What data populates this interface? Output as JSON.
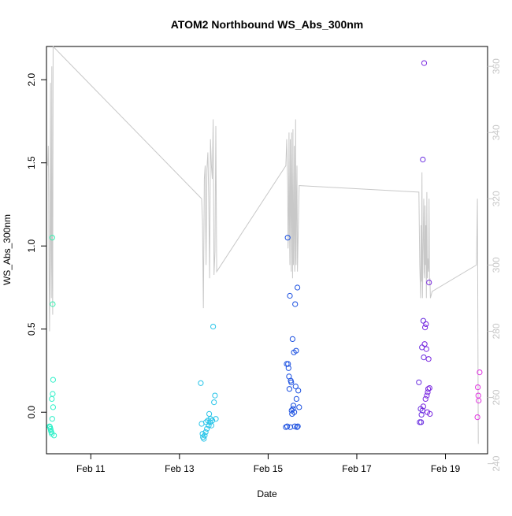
{
  "chart_data": {
    "type": "scatter",
    "title": "ATOM2 Northbound WS_Abs_300nm",
    "xlabel": "Date",
    "ylabel": "WS_Abs_300nm",
    "xlim": [
      10.0,
      19.95
    ],
    "ylim": [
      -0.25,
      2.2
    ],
    "y2lim": [
      243,
      366
    ],
    "x_ticks": [
      {
        "value": 11,
        "label": "Feb 11"
      },
      {
        "value": 13,
        "label": "Feb 13"
      },
      {
        "value": 15,
        "label": "Feb 15"
      },
      {
        "value": 17,
        "label": "Feb 17"
      },
      {
        "value": 19,
        "label": "Feb 19"
      }
    ],
    "y_ticks": [
      {
        "value": 0.0,
        "label": "0.0"
      },
      {
        "value": 0.5,
        "label": "0.5"
      },
      {
        "value": 1.0,
        "label": "1.0"
      },
      {
        "value": 1.5,
        "label": "1.5"
      },
      {
        "value": 2.0,
        "label": "2.0"
      }
    ],
    "y2_ticks": [
      {
        "value": 240,
        "label": "240"
      },
      {
        "value": 260,
        "label": "260"
      },
      {
        "value": 280,
        "label": "280"
      },
      {
        "value": 300,
        "label": "300"
      },
      {
        "value": 320,
        "label": "320"
      },
      {
        "value": 340,
        "label": "340"
      },
      {
        "value": 360,
        "label": "360"
      }
    ],
    "axis_color_secondary": "#c8c8c8",
    "grid": false,
    "series": [
      {
        "name": "WS_Abs_300nm",
        "marker": "open-circle",
        "points": [
          [
            10.07,
            -0.085,
            "#2ef0c8"
          ],
          [
            10.08,
            -0.09,
            "#2ef0c8"
          ],
          [
            10.09,
            -0.1,
            "#2ef0c8"
          ],
          [
            10.1,
            -0.11,
            "#2ef0c8"
          ],
          [
            10.11,
            -0.12,
            "#2ef0c8"
          ],
          [
            10.12,
            -0.13,
            "#2ef0c8"
          ],
          [
            10.13,
            -0.04,
            "#2ef0c8"
          ],
          [
            10.14,
            0.11,
            "#2ef0c8"
          ],
          [
            10.15,
            0.03,
            "#2ef0c8"
          ],
          [
            10.17,
            -0.14,
            "#2ef0c8"
          ],
          [
            10.12,
            0.08,
            "#2ef0c8"
          ],
          [
            10.13,
            1.05,
            "#34f0b0"
          ],
          [
            10.14,
            0.65,
            "#34f0b0"
          ],
          [
            10.15,
            0.195,
            "#2ef0c8"
          ],
          [
            13.48,
            0.175,
            "#26c4e8"
          ],
          [
            13.5,
            -0.07,
            "#26c4e8"
          ],
          [
            13.52,
            -0.13,
            "#26c4e8"
          ],
          [
            13.53,
            -0.15,
            "#26c4e8"
          ],
          [
            13.55,
            -0.16,
            "#26c4e8"
          ],
          [
            13.57,
            -0.14,
            "#26c4e8"
          ],
          [
            13.59,
            -0.12,
            "#26c4e8"
          ],
          [
            13.6,
            -0.06,
            "#26c4e8"
          ],
          [
            13.62,
            -0.1,
            "#26c4e8"
          ],
          [
            13.64,
            -0.05,
            "#26c4e8"
          ],
          [
            13.66,
            -0.08,
            "#26c4e8"
          ],
          [
            13.67,
            -0.01,
            "#26c4e8"
          ],
          [
            13.69,
            -0.06,
            "#26c4e8"
          ],
          [
            13.7,
            -0.04,
            "#26c4e8"
          ],
          [
            13.72,
            -0.08,
            "#26c4e8"
          ],
          [
            13.74,
            -0.05,
            "#26c4e8"
          ],
          [
            13.76,
            0.515,
            "#26c4e8"
          ],
          [
            13.78,
            0.06,
            "#26c4e8"
          ],
          [
            13.8,
            0.1,
            "#26c4e8"
          ],
          [
            13.82,
            -0.04,
            "#26c4e8"
          ],
          [
            15.4,
            -0.09,
            "#1a4fe0"
          ],
          [
            15.42,
            0.29,
            "#1a4fe0"
          ],
          [
            15.43,
            -0.085,
            "#1a4fe0"
          ],
          [
            15.44,
            1.05,
            "#1a4fe0"
          ],
          [
            15.45,
            0.29,
            "#1a4fe0"
          ],
          [
            15.46,
            0.265,
            "#1a4fe0"
          ],
          [
            15.47,
            0.215,
            "#1a4fe0"
          ],
          [
            15.48,
            0.14,
            "#1a4fe0"
          ],
          [
            15.49,
            0.7,
            "#1a4fe0"
          ],
          [
            15.5,
            -0.09,
            "#1a4fe0"
          ],
          [
            15.51,
            0.19,
            "#1a4fe0"
          ],
          [
            15.52,
            0.18,
            "#1a4fe0"
          ],
          [
            15.53,
            0.01,
            "#1a4fe0"
          ],
          [
            15.54,
            -0.01,
            "#1a4fe0"
          ],
          [
            15.55,
            0.44,
            "#1a4fe0"
          ],
          [
            15.56,
            0.02,
            "#1a4fe0"
          ],
          [
            15.57,
            0.04,
            "#1a4fe0"
          ],
          [
            15.58,
            0.36,
            "#1a4fe0"
          ],
          [
            15.59,
            0.0,
            "#1a4fe0"
          ],
          [
            15.6,
            -0.085,
            "#1a4fe0"
          ],
          [
            15.61,
            0.65,
            "#1a4fe0"
          ],
          [
            15.62,
            0.155,
            "#1a4fe0"
          ],
          [
            15.63,
            0.37,
            "#1a4fe0"
          ],
          [
            15.64,
            0.08,
            "#1a4fe0"
          ],
          [
            15.65,
            -0.09,
            "#1a4fe0"
          ],
          [
            15.66,
            0.75,
            "#1a4fe0"
          ],
          [
            15.67,
            -0.085,
            "#1a4fe0"
          ],
          [
            15.68,
            0.13,
            "#1a4fe0"
          ],
          [
            15.7,
            0.03,
            "#1a4fe0"
          ],
          [
            18.4,
            0.18,
            "#6a2ee0"
          ],
          [
            18.42,
            -0.06,
            "#6a2ee0"
          ],
          [
            18.44,
            0.02,
            "#6a2ee0"
          ],
          [
            18.45,
            -0.06,
            "#6a2ee0"
          ],
          [
            18.46,
            -0.015,
            "#6a2ee0"
          ],
          [
            18.47,
            0.39,
            "#6a2ee0"
          ],
          [
            18.48,
            0.01,
            "#6a2ee0"
          ],
          [
            18.49,
            1.52,
            "#6a2ee0"
          ],
          [
            18.5,
            0.55,
            "#6a2ee0"
          ],
          [
            18.51,
            0.33,
            "#6a2ee0"
          ],
          [
            18.52,
            2.1,
            "#7a28e0"
          ],
          [
            18.53,
            0.41,
            "#7a28e0"
          ],
          [
            18.54,
            0.51,
            "#7a28e0"
          ],
          [
            18.55,
            0.08,
            "#7a28e0"
          ],
          [
            18.56,
            0.53,
            "#7a28e0"
          ],
          [
            18.57,
            0.38,
            "#7a28e0"
          ],
          [
            18.58,
            0.1,
            "#7a28e0"
          ],
          [
            18.59,
            0.0,
            "#7a28e0"
          ],
          [
            18.6,
            0.12,
            "#7a28e0"
          ],
          [
            18.61,
            0.14,
            "#7a28e0"
          ],
          [
            18.62,
            0.32,
            "#7a28e0"
          ],
          [
            18.63,
            0.78,
            "#7a28e0"
          ],
          [
            18.64,
            0.145,
            "#7a28e0"
          ],
          [
            18.65,
            -0.01,
            "#7a28e0"
          ],
          [
            18.5,
            0.035,
            "#7a28e0"
          ],
          [
            19.72,
            -0.03,
            "#e030e0"
          ],
          [
            19.73,
            0.15,
            "#e030e0"
          ],
          [
            19.74,
            0.1,
            "#e030e0"
          ],
          [
            19.75,
            0.07,
            "#e030e0"
          ],
          [
            19.77,
            0.24,
            "#e030e0"
          ]
        ]
      },
      {
        "name": "secondary-axis-trace",
        "axis": "right",
        "color": "#c8c8c8",
        "line": [
          [
            10.03,
            330
          ],
          [
            10.04,
            336
          ],
          [
            10.05,
            325
          ],
          [
            10.06,
            295
          ],
          [
            10.07,
            280
          ],
          [
            10.08,
            300
          ],
          [
            10.09,
            355
          ],
          [
            10.1,
            310
          ],
          [
            10.11,
            290
          ],
          [
            10.12,
            360
          ],
          [
            10.13,
            300
          ],
          [
            10.14,
            285
          ],
          [
            10.15,
            366
          ],
          [
            13.5,
            320
          ],
          [
            13.52,
            313
          ],
          [
            13.54,
            287
          ],
          [
            13.56,
            326
          ],
          [
            13.58,
            330
          ],
          [
            13.59,
            311
          ],
          [
            13.6,
            300
          ],
          [
            13.62,
            329
          ],
          [
            13.64,
            334
          ],
          [
            13.66,
            320
          ],
          [
            13.68,
            296
          ],
          [
            13.7,
            338
          ],
          [
            13.72,
            330
          ],
          [
            13.74,
            326
          ],
          [
            13.76,
            344
          ],
          [
            13.78,
            297
          ],
          [
            13.8,
            304
          ],
          [
            13.82,
            342
          ],
          [
            13.84,
            298
          ],
          [
            15.4,
            330
          ],
          [
            15.42,
            338
          ],
          [
            15.44,
            325
          ],
          [
            15.45,
            305
          ],
          [
            15.46,
            310
          ],
          [
            15.47,
            340
          ],
          [
            15.48,
            315
          ],
          [
            15.49,
            300
          ],
          [
            15.5,
            338
          ],
          [
            15.51,
            320
          ],
          [
            15.52,
            298
          ],
          [
            15.53,
            340
          ],
          [
            15.54,
            318
          ],
          [
            15.55,
            296
          ],
          [
            15.56,
            341
          ],
          [
            15.57,
            300
          ],
          [
            15.58,
            312
          ],
          [
            15.59,
            336
          ],
          [
            15.6,
            298
          ],
          [
            15.61,
            302
          ],
          [
            15.62,
            344
          ],
          [
            15.63,
            300
          ],
          [
            15.64,
            318
          ],
          [
            15.65,
            330
          ],
          [
            15.66,
            298
          ],
          [
            15.7,
            324
          ],
          [
            18.4,
            322
          ],
          [
            18.42,
            300
          ],
          [
            18.44,
            290
          ],
          [
            18.45,
            312
          ],
          [
            18.46,
            295
          ],
          [
            18.47,
            328
          ],
          [
            18.48,
            290
          ],
          [
            18.5,
            310
          ],
          [
            18.51,
            320
          ],
          [
            18.52,
            298
          ],
          [
            18.53,
            296
          ],
          [
            18.54,
            318
          ],
          [
            18.55,
            300
          ],
          [
            18.56,
            312
          ],
          [
            18.57,
            290
          ],
          [
            18.58,
            322
          ],
          [
            18.59,
            296
          ],
          [
            18.6,
            302
          ],
          [
            18.62,
            298
          ],
          [
            18.63,
            320
          ],
          [
            18.64,
            294
          ],
          [
            18.65,
            296
          ],
          [
            18.66,
            290
          ],
          [
            18.7,
            292
          ],
          [
            19.7,
            300
          ],
          [
            19.72,
            320
          ],
          [
            19.74,
            246
          ]
        ]
      }
    ]
  }
}
